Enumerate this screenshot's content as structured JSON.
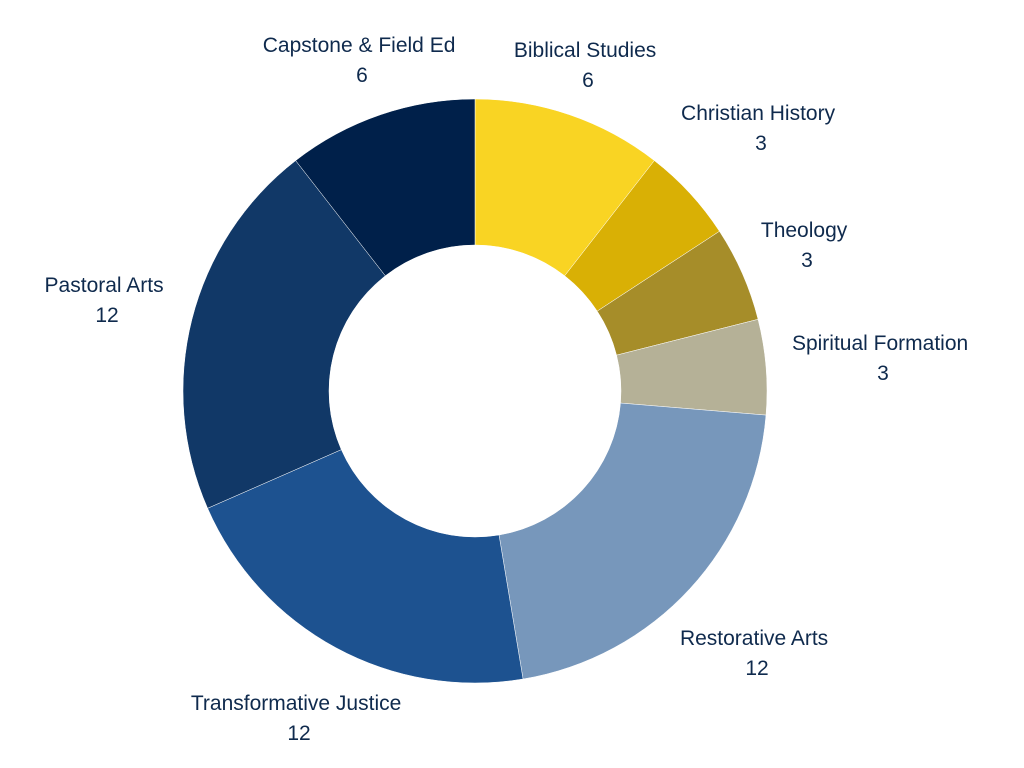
{
  "chart_data": {
    "type": "pie",
    "variant": "donut",
    "title": "",
    "start": "12 o'clock",
    "direction": "clockwise",
    "legend": "none",
    "data_labels": "outside, category name above value",
    "label_color": "#0f2a4d",
    "categories": [
      "Biblical Studies",
      "Christian History",
      "Theology",
      "Spiritual Formation",
      "Restorative Arts",
      "Transformative Justice",
      "Pastoral Arts",
      "Capstone & Field Ed"
    ],
    "values": [
      6,
      3,
      3,
      3,
      12,
      12,
      12,
      6
    ],
    "value_labels": [
      "6",
      "3",
      "3",
      "3",
      "12",
      "12",
      "12",
      "6"
    ],
    "colors": [
      "#f9d423",
      "#d9b005",
      "#a68d29",
      "#b5b197",
      "#7797bb",
      "#1d5290",
      "#113867",
      "#00204a"
    ]
  }
}
